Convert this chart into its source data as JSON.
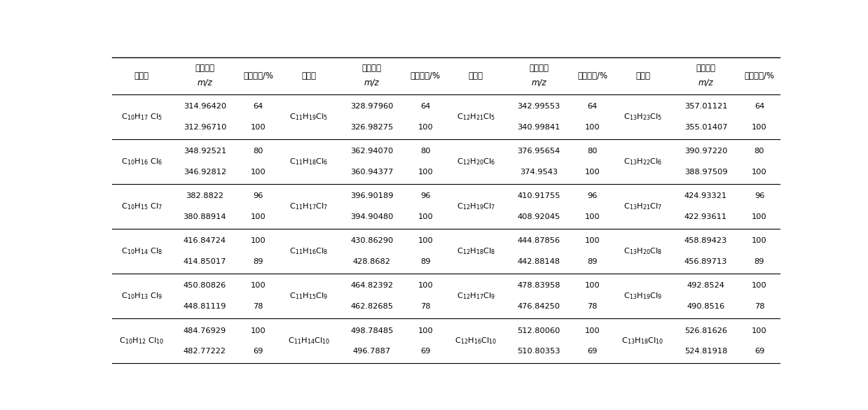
{
  "fig_width": 12.39,
  "fig_height": 5.86,
  "rows": [
    {
      "formula1": "C$_{10}$H$_{17}$ Cl$_5$",
      "mz1_1": "314.96420",
      "ab1_1": "64",
      "formula2": "C$_{11}$H$_{19}$Cl$_5$",
      "mz2_1": "328.97960",
      "ab2_1": "64",
      "formula3": "C$_{12}$H$_{21}$Cl$_5$",
      "mz3_1": "342.99553",
      "ab3_1": "64",
      "formula4": "C$_{13}$H$_{23}$Cl$_5$",
      "mz4_1": "357.01121",
      "ab4_1": "64",
      "mz1_2": "312.96710",
      "ab1_2": "100",
      "mz2_2": "326.98275",
      "ab2_2": "100",
      "mz3_2": "340.99841",
      "ab3_2": "100",
      "mz4_2": "355.01407",
      "ab4_2": "100"
    },
    {
      "formula1": "C$_{10}$H$_{16}$ Cl$_6$",
      "mz1_1": "348.92521",
      "ab1_1": "80",
      "formula2": "C$_{11}$H$_{18}$Cl$_6$",
      "mz2_1": "362.94070",
      "ab2_1": "80",
      "formula3": "C$_{12}$H$_{20}$Cl$_6$",
      "mz3_1": "376.95654",
      "ab3_1": "80",
      "formula4": "C$_{13}$H$_{22}$Cl$_6$",
      "mz4_1": "390.97220",
      "ab4_1": "80",
      "mz1_2": "346.92812",
      "ab1_2": "100",
      "mz2_2": "360.94377",
      "ab2_2": "100",
      "mz3_2": "374.9543",
      "ab3_2": "100",
      "mz4_2": "388.97509",
      "ab4_2": "100"
    },
    {
      "formula1": "C$_{10}$H$_{15}$ Cl$_7$",
      "mz1_1": "382.8822",
      "ab1_1": "96",
      "formula2": "C$_{11}$H$_{17}$Cl$_7$",
      "mz2_1": "396.90189",
      "ab2_1": "96",
      "formula3": "C$_{12}$H$_{19}$Cl$_7$",
      "mz3_1": "410.91755",
      "ab3_1": "96",
      "formula4": "C$_{13}$H$_{21}$Cl$_7$",
      "mz4_1": "424.93321",
      "ab4_1": "96",
      "mz1_2": "380.88914",
      "ab1_2": "100",
      "mz2_2": "394.90480",
      "ab2_2": "100",
      "mz3_2": "408.92045",
      "ab3_2": "100",
      "mz4_2": "422.93611",
      "ab4_2": "100"
    },
    {
      "formula1": "C$_{10}$H$_{14}$ Cl$_8$",
      "mz1_1": "416.84724",
      "ab1_1": "100",
      "formula2": "C$_{11}$H$_{16}$Cl$_8$",
      "mz2_1": "430.86290",
      "ab2_1": "100",
      "formula3": "C$_{12}$H$_{18}$Cl$_8$",
      "mz3_1": "444.87856",
      "ab3_1": "100",
      "formula4": "C$_{13}$H$_{20}$Cl$_8$",
      "mz4_1": "458.89423",
      "ab4_1": "100",
      "mz1_2": "414.85017",
      "ab1_2": "89",
      "mz2_2": "428.8682",
      "ab2_2": "89",
      "mz3_2": "442.88148",
      "ab3_2": "89",
      "mz4_2": "456.89713",
      "ab4_2": "89"
    },
    {
      "formula1": "C$_{10}$H$_{13}$ Cl$_9$",
      "mz1_1": "450.80826",
      "ab1_1": "100",
      "formula2": "C$_{11}$H$_{15}$Cl$_9$",
      "mz2_1": "464.82392",
      "ab2_1": "100",
      "formula3": "C$_{12}$H$_{17}$Cl$_9$",
      "mz3_1": "478.83958",
      "ab3_1": "100",
      "formula4": "C$_{13}$H$_{19}$Cl$_9$",
      "mz4_1": "492.8524",
      "ab4_1": "100",
      "mz1_2": "448.81119",
      "ab1_2": "78",
      "mz2_2": "462.82685",
      "ab2_2": "78",
      "mz3_2": "476.84250",
      "ab3_2": "78",
      "mz4_2": "490.8516",
      "ab4_2": "78"
    },
    {
      "formula1": "C$_{10}$H$_{12}$ Cl$_{10}$",
      "mz1_1": "484.76929",
      "ab1_1": "100",
      "formula2": "C$_{11}$H$_{14}$Cl$_{10}$",
      "mz2_1": "498.78485",
      "ab2_1": "100",
      "formula3": "C$_{12}$H$_{16}$Cl$_{10}$",
      "mz3_1": "512.80060",
      "ab3_1": "100",
      "formula4": "C$_{13}$H$_{18}$Cl$_{10}$",
      "mz4_1": "526.81626",
      "ab4_1": "100",
      "mz1_2": "482.77222",
      "ab1_2": "69",
      "mz2_2": "496.7887",
      "ab2_2": "69",
      "mz3_2": "510.80353",
      "ab3_2": "69",
      "mz4_2": "524.81918",
      "ab4_2": "69"
    }
  ]
}
